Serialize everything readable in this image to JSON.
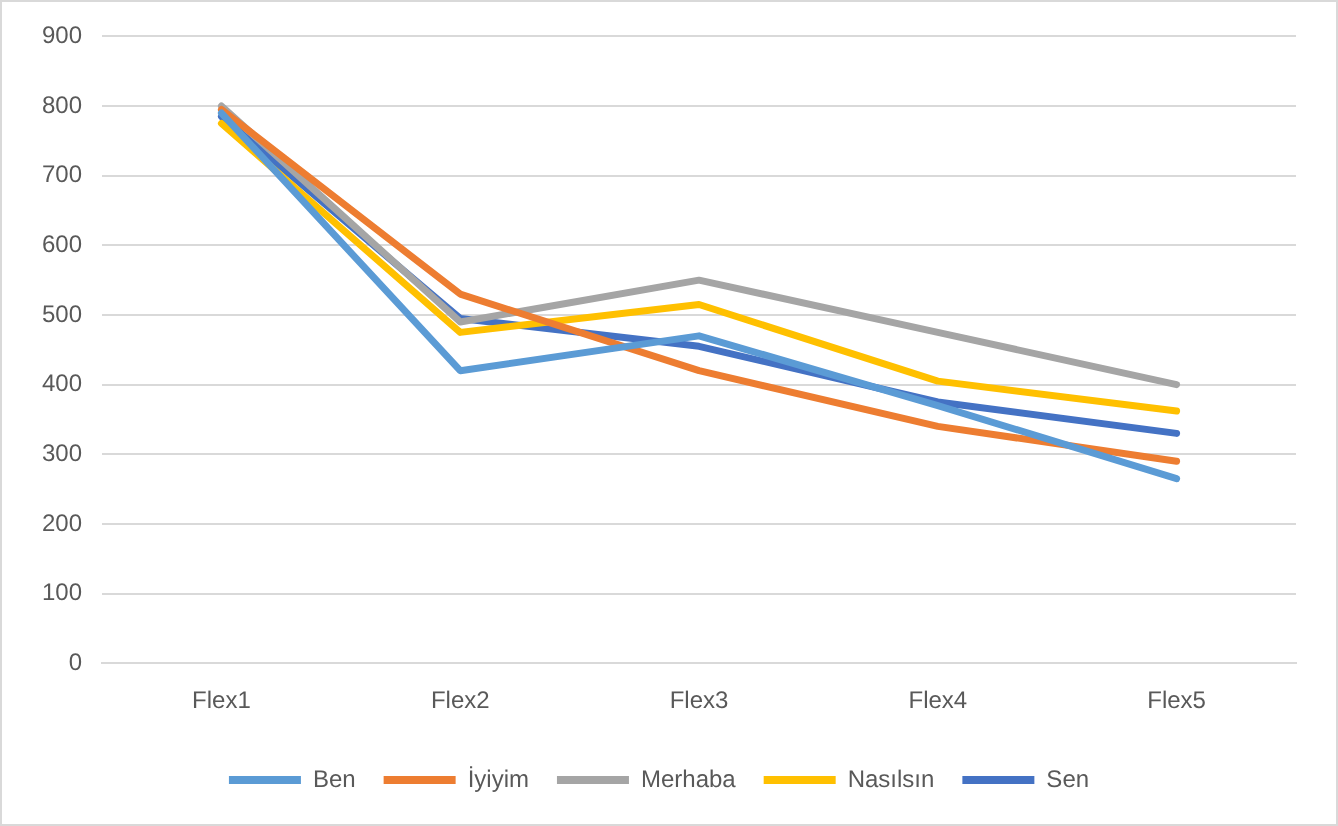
{
  "chart_data": {
    "type": "line",
    "categories": [
      "Flex1",
      "Flex2",
      "Flex3",
      "Flex4",
      "Flex5"
    ],
    "series": [
      {
        "name": "Ben",
        "color": "#5b9bd5",
        "values": [
          790,
          420,
          470,
          370,
          265
        ]
      },
      {
        "name": "İyiyim",
        "color": "#ed7d31",
        "values": [
          795,
          530,
          420,
          340,
          290
        ]
      },
      {
        "name": "Merhaba",
        "color": "#a5a5a5",
        "values": [
          800,
          490,
          550,
          475,
          400
        ]
      },
      {
        "name": "Nasılsın",
        "color": "#ffc000",
        "values": [
          775,
          475,
          515,
          405,
          362
        ]
      },
      {
        "name": "Sen",
        "color": "#4472c4",
        "values": [
          785,
          495,
          455,
          375,
          330
        ]
      }
    ],
    "ylim": [
      0,
      900
    ],
    "yticks": [
      0,
      100,
      200,
      300,
      400,
      500,
      600,
      700,
      800,
      900
    ],
    "grid": "y",
    "legend": "bottom",
    "marker": "none",
    "line_style": "solid"
  }
}
